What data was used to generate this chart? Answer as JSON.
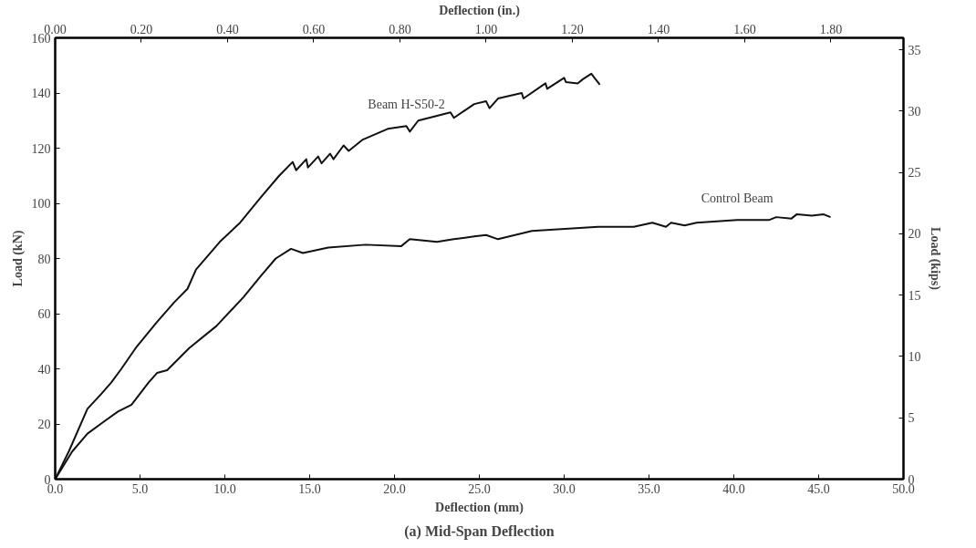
{
  "chart_data": {
    "type": "line",
    "title": "(a) Mid-Span Deflection",
    "xlabel": "Deflection (mm)",
    "ylabel": "Load (kN)",
    "x2label": "Deflection (in.)",
    "y2label": "Load (kips)",
    "xlim": [
      0,
      50
    ],
    "ylim": [
      0,
      160
    ],
    "x2lim": [
      0,
      1.9685
    ],
    "y2lim": [
      0,
      35.97
    ],
    "xticks": [
      {
        "value": 0,
        "label": "0.0"
      },
      {
        "value": 5,
        "label": "5.0"
      },
      {
        "value": 10,
        "label": "10.0"
      },
      {
        "value": 15,
        "label": "15.0"
      },
      {
        "value": 20,
        "label": "20.0"
      },
      {
        "value": 25,
        "label": "25.0"
      },
      {
        "value": 30,
        "label": "30.0"
      },
      {
        "value": 35,
        "label": "35.0"
      },
      {
        "value": 40,
        "label": "40.0"
      },
      {
        "value": 45,
        "label": "45.0"
      },
      {
        "value": 50,
        "label": "50.0"
      }
    ],
    "yticks": [
      0,
      20,
      40,
      60,
      80,
      100,
      120,
      140,
      160
    ],
    "x2ticks": [
      {
        "value": 0,
        "label": "0.00"
      },
      {
        "value": 0.2,
        "label": "0.20"
      },
      {
        "value": 0.4,
        "label": "0.40"
      },
      {
        "value": 0.6,
        "label": "0.60"
      },
      {
        "value": 0.8,
        "label": "0.80"
      },
      {
        "value": 1.0,
        "label": "1.00"
      },
      {
        "value": 1.2,
        "label": "1.20"
      },
      {
        "value": 1.4,
        "label": "1.40"
      },
      {
        "value": 1.6,
        "label": "1.60"
      },
      {
        "value": 1.8,
        "label": "1.80"
      }
    ],
    "y2ticks": [
      0,
      5,
      10,
      15,
      20,
      25,
      30,
      35
    ],
    "grid": false,
    "marker": "none",
    "line_style": "solid",
    "series": [
      {
        "name": "Beam H-S50-2",
        "color": "#111111",
        "x": [
          0,
          0.8,
          1.9,
          2.7,
          3.3,
          3.9,
          4.8,
          6.0,
          7.0,
          7.8,
          8.3,
          9.7,
          10.9,
          12.1,
          13.2,
          14.0,
          14.2,
          14.8,
          14.9,
          15.5,
          15.7,
          16.2,
          16.4,
          17.0,
          17.3,
          18.1,
          19.6,
          20.7,
          20.9,
          21.4,
          23.3,
          23.5,
          24.7,
          25.4,
          25.6,
          26.1,
          27.5,
          27.6,
          28.9,
          29.0,
          30.0,
          30.1,
          30.8,
          31.1,
          31.6,
          32.1
        ],
        "values": [
          0,
          10,
          25.5,
          30.8,
          35,
          40,
          48,
          57,
          64,
          69,
          76,
          86,
          93,
          102,
          110,
          115,
          112,
          116,
          113,
          117,
          114.5,
          118,
          116,
          121,
          119,
          123,
          127,
          128,
          126,
          130,
          133,
          131,
          136,
          137,
          134.5,
          138,
          140,
          138,
          143.5,
          141.5,
          145.5,
          144,
          143.5,
          145,
          147,
          143
        ]
      },
      {
        "name": "Control Beam",
        "color": "#111111",
        "x": [
          0,
          0.2,
          1.0,
          1.9,
          2.9,
          3.7,
          4.5,
          5.5,
          6.0,
          6.6,
          7.9,
          9.5,
          11.1,
          12.1,
          13.0,
          13.9,
          14.6,
          16.1,
          18.3,
          20.4,
          20.9,
          22.5,
          23.5,
          24.7,
          25.4,
          26.1,
          28.1,
          32.0,
          34.1,
          35.2,
          36.0,
          36.3,
          37.1,
          37.8,
          40.2,
          42.1,
          42.5,
          43.4,
          43.7,
          44.6,
          45.3,
          45.7
        ],
        "values": [
          0,
          2,
          10,
          16.5,
          21,
          24.5,
          27,
          35,
          38.5,
          39.5,
          47.5,
          55.5,
          66,
          73.5,
          80,
          83.5,
          82,
          84,
          85,
          84.5,
          87,
          86,
          87,
          88,
          88.5,
          87,
          90,
          91.5,
          91.5,
          93,
          91.5,
          93,
          92,
          93,
          94,
          94,
          95,
          94.5,
          96,
          95.5,
          96,
          95
        ]
      }
    ]
  }
}
